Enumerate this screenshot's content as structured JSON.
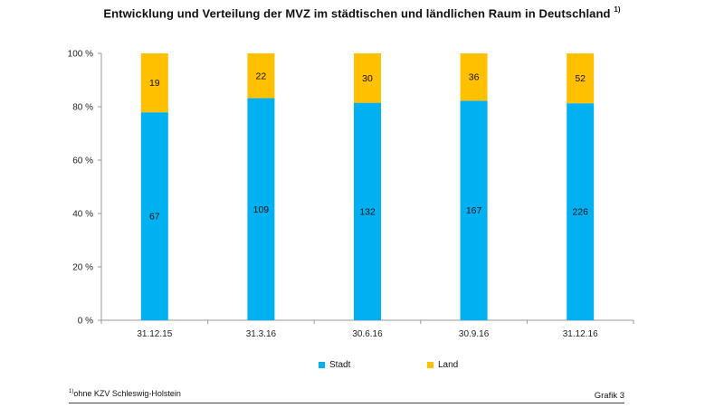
{
  "title": "Entwicklung und Verteilung der MVZ im städtischen und ländlichen Raum in Deutschland",
  "title_footnote_mark": "1)",
  "footnote": {
    "mark": "1)",
    "text": "ohne KZV Schleswig-Holstein"
  },
  "figure_label": "Grafik 3",
  "colors": {
    "stadt": "#00B0F0",
    "land": "#FFC000",
    "axis": "#999999"
  },
  "chart_data": {
    "type": "bar",
    "stacked": true,
    "normalized": true,
    "title": "Entwicklung und Verteilung der MVZ im städtischen und ländlichen Raum in Deutschland",
    "categories": [
      "31.12.15",
      "31.3.16",
      "30.6.16",
      "30.9.16",
      "31.12.16"
    ],
    "series": [
      {
        "name": "Stadt",
        "values": [
          67,
          109,
          132,
          167,
          226
        ],
        "color": "#00B0F0"
      },
      {
        "name": "Land",
        "values": [
          19,
          22,
          30,
          36,
          52
        ],
        "color": "#FFC000"
      }
    ],
    "yticks": [
      "0 %",
      "20 %",
      "40 %",
      "60 %",
      "80 %",
      "100 %"
    ],
    "ylim": [
      0,
      100
    ],
    "grid": false,
    "legend": "bottom"
  }
}
